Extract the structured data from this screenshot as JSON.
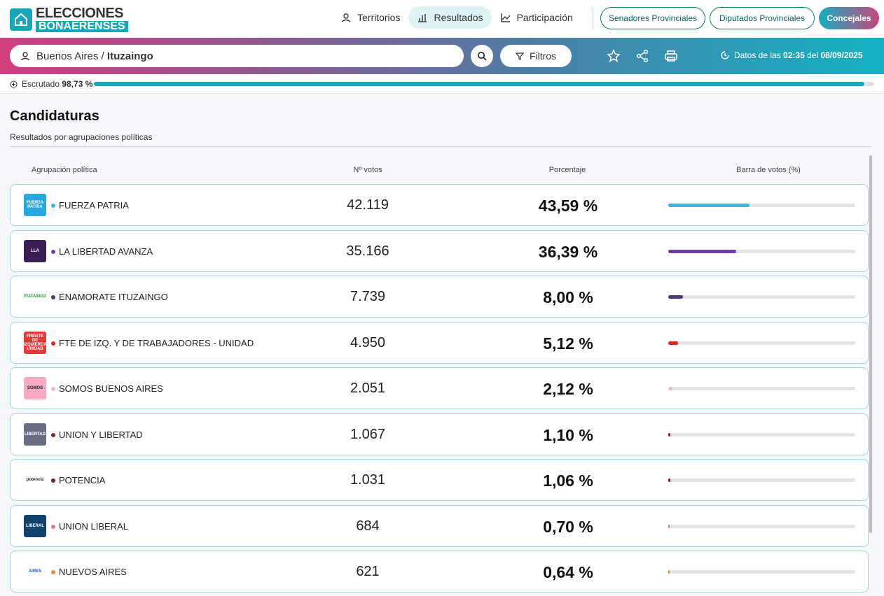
{
  "brand": {
    "line1": "ELECCIONES",
    "line2": "BONAERENSES"
  },
  "nav": [
    {
      "label": "Territorios",
      "icon": "map-pin-icon"
    },
    {
      "label": "Resultados",
      "icon": "bar-chart-icon",
      "active": true
    },
    {
      "label": "Participación",
      "icon": "line-chart-icon"
    }
  ],
  "categories": [
    "Senadores Provinciales",
    "Diputados Provinciales",
    "Concejales"
  ],
  "search": {
    "province": "Buenos Aires /",
    "district": "Ituzaingo"
  },
  "filter_label": "Filtros",
  "updated": {
    "prefix": "Datos de las",
    "time": "02:35",
    "mid": "del",
    "date": "08/09/2025"
  },
  "escrutado": {
    "label": "Escrutado",
    "value": "98,73 %",
    "fraction": 0.9873
  },
  "section": {
    "title": "Candidaturas",
    "subtitle": "Resultados por agrupaciones políticas"
  },
  "columns": {
    "party": "Agrupación política",
    "votes": "Nº votos",
    "pct": "Porcentaje",
    "bar": "Barra de votos (%)"
  },
  "accent_color": "#17a7b8",
  "results": [
    {
      "name": "FUERZA PATRIA",
      "votes": "42.119",
      "pct": "43,59 %",
      "share": 43.59,
      "color": "#3fb2dd",
      "logo_bg": "#29a8e0",
      "logo_text": "FUERZA PATRIA",
      "logo_fg": "#ffffff"
    },
    {
      "name": "LA LIBERTAD AVANZA",
      "votes": "35.166",
      "pct": "36,39 %",
      "share": 36.39,
      "color": "#6a3fa0",
      "logo_bg": "#3b1f57",
      "logo_text": "LLA",
      "logo_fg": "#ffffff"
    },
    {
      "name": "ENAMORATE ITUZAINGO",
      "votes": "7.739",
      "pct": "8,00 %",
      "share": 8.0,
      "color": "#4b3a6b",
      "logo_bg": "#ffffff",
      "logo_text": "ITUZAINGO",
      "logo_fg": "#2e9a3b"
    },
    {
      "name": "FTE DE IZQ. Y DE TRABAJADORES - UNIDAD",
      "votes": "4.950",
      "pct": "5,12 %",
      "share": 5.12,
      "color": "#e02424",
      "logo_bg": "#e23a3a",
      "logo_text": "FRENTE DE IZQUIERDA UNIDAD",
      "logo_fg": "#ffffff"
    },
    {
      "name": "SOMOS BUENOS AIRES",
      "votes": "2.051",
      "pct": "2,12 %",
      "share": 2.12,
      "color": "#f4b6cf",
      "logo_bg": "#f7a9c6",
      "logo_text": "SOMOS",
      "logo_fg": "#222222"
    },
    {
      "name": "UNION Y LIBERTAD",
      "votes": "1.067",
      "pct": "1,10 %",
      "share": 1.1,
      "color": "#8a2338",
      "logo_bg": "#6b6f86",
      "logo_text": "LIBERTAD",
      "logo_fg": "#ffffff"
    },
    {
      "name": "POTENCIA",
      "votes": "1.031",
      "pct": "1,06 %",
      "share": 1.06,
      "color": "#7a1f26",
      "logo_bg": "#ffffff",
      "logo_text": "potencia",
      "logo_fg": "#222222"
    },
    {
      "name": "UNION LIBERAL",
      "votes": "684",
      "pct": "0,70 %",
      "share": 0.7,
      "color": "#d9807e",
      "logo_bg": "#10426b",
      "logo_text": "LIBERAL",
      "logo_fg": "#ffffff"
    },
    {
      "name": "NUEVOS AIRES",
      "votes": "621",
      "pct": "0,64 %",
      "share": 0.64,
      "color": "#f08a3c",
      "logo_bg": "#ffffff",
      "logo_text": "AIRES",
      "logo_fg": "#1a4fbf"
    }
  ]
}
